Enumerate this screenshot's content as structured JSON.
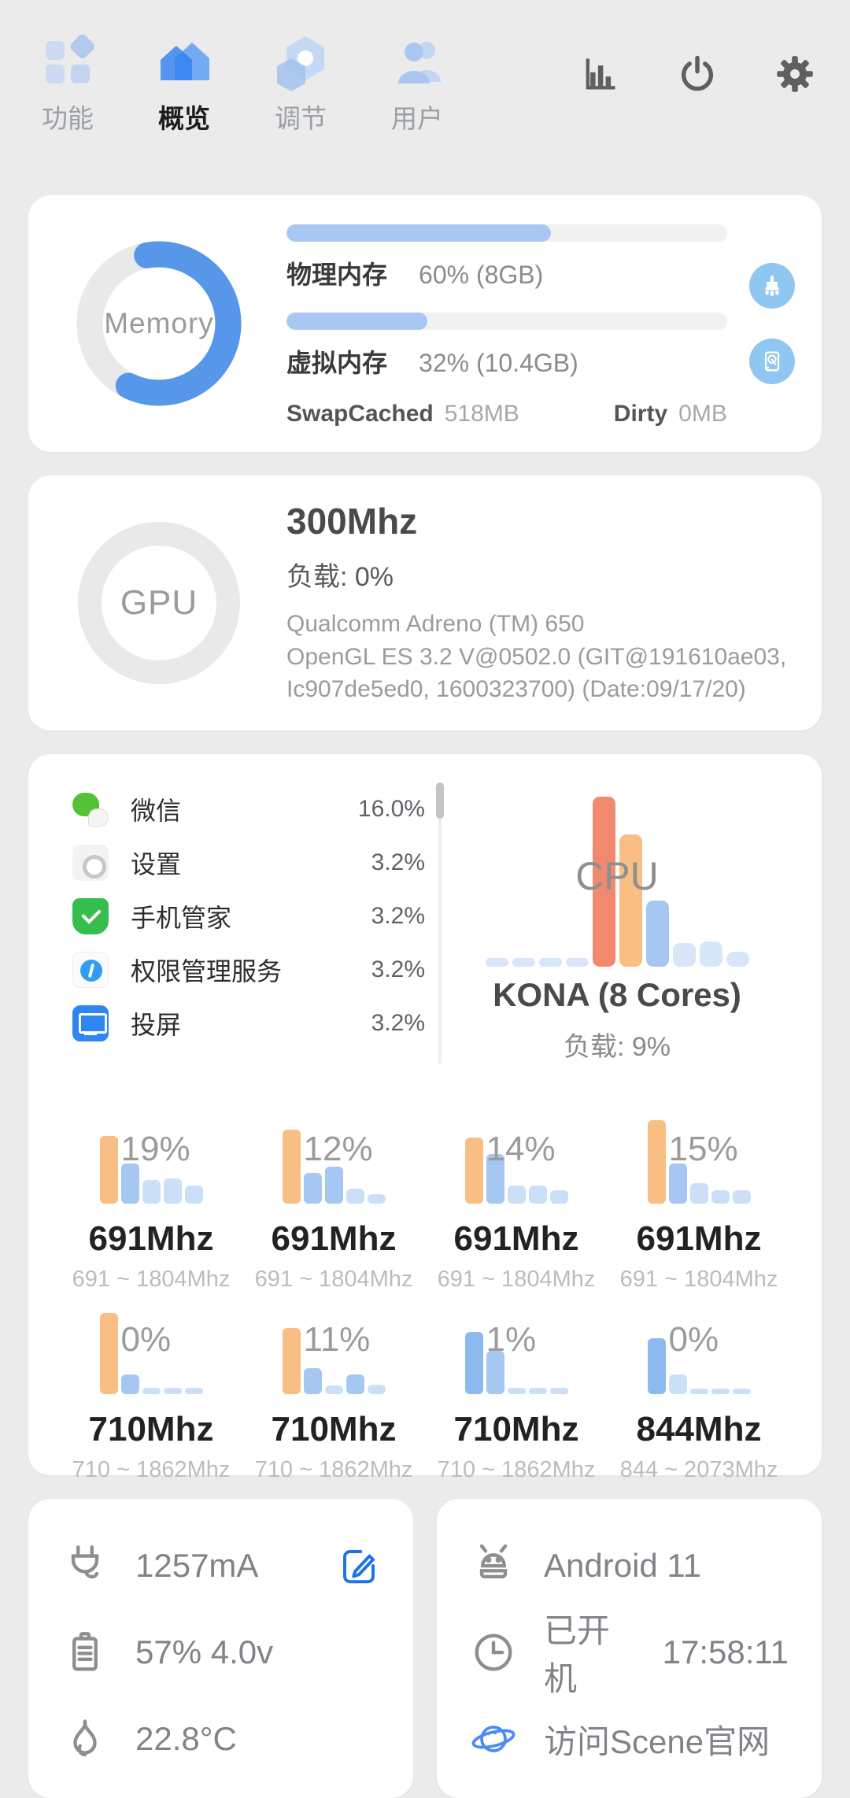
{
  "colors": {
    "salmon": "#F1896F",
    "orange": "#F8BE83",
    "blue": "#A5C7F2",
    "blue_strong": "#8CBAEE",
    "pale_blue": "#D7E6F9",
    "core_pale": "#CBDFF8"
  },
  "nav": {
    "tabs": [
      {
        "label": "功能",
        "active": false
      },
      {
        "label": "概览",
        "active": true
      },
      {
        "label": "调节",
        "active": false
      },
      {
        "label": "用户",
        "active": false
      }
    ]
  },
  "memory": {
    "title": "Memory",
    "ring_percent": 60,
    "rows": [
      {
        "label": "物理内存",
        "value": "60% (8GB)",
        "percent": 60
      },
      {
        "label": "虚拟内存",
        "value": "32% (10.4GB)",
        "percent": 32
      }
    ],
    "stats": [
      {
        "label": "SwapCached",
        "value": "518MB"
      },
      {
        "label": "Dirty",
        "value": "0MB"
      }
    ]
  },
  "gpu": {
    "title": "GPU",
    "freq": "300Mhz",
    "load": "负载: 0%",
    "info_lines": [
      "Qualcomm Adreno (TM) 650",
      "OpenGL ES 3.2 V@0502.0 (GIT@191610ae03,",
      "Ic907de5ed0, 1600323700) (Date:09/17/20)"
    ]
  },
  "cpu": {
    "overlay": "CPU",
    "chip": "KONA (8 Cores)",
    "load": "负载: 9%",
    "apps": [
      {
        "name": "微信",
        "value": "16.0%",
        "icon": "wechat"
      },
      {
        "name": "设置",
        "value": "3.2%",
        "icon": "settings"
      },
      {
        "name": "手机管家",
        "value": "3.2%",
        "icon": "manager"
      },
      {
        "name": "权限管理服务",
        "value": "3.2%",
        "icon": "permission"
      },
      {
        "name": "投屏",
        "value": "3.2%",
        "icon": "cast"
      }
    ],
    "chart_bars": [
      {
        "h": 0.05,
        "c": "pale_blue"
      },
      {
        "h": 0.05,
        "c": "pale_blue"
      },
      {
        "h": 0.05,
        "c": "pale_blue"
      },
      {
        "h": 0.05,
        "c": "pale_blue"
      },
      {
        "h": 1.0,
        "c": "salmon"
      },
      {
        "h": 0.78,
        "c": "orange"
      },
      {
        "h": 0.39,
        "c": "blue"
      },
      {
        "h": 0.14,
        "c": "pale_blue"
      },
      {
        "h": 0.15,
        "c": "pale_blue"
      },
      {
        "h": 0.09,
        "c": "pale_blue"
      }
    ],
    "cores": [
      {
        "percent": "19%",
        "freq": "691Mhz",
        "range": "691 ~ 1804Mhz",
        "bars": [
          {
            "h": 0.81,
            "c": "orange"
          },
          {
            "h": 0.48,
            "c": "blue"
          },
          {
            "h": 0.28,
            "c": "core_pale"
          },
          {
            "h": 0.3,
            "c": "core_pale"
          },
          {
            "h": 0.22,
            "c": "core_pale"
          }
        ]
      },
      {
        "percent": "12%",
        "freq": "691Mhz",
        "range": "691 ~ 1804Mhz",
        "bars": [
          {
            "h": 0.89,
            "c": "orange"
          },
          {
            "h": 0.37,
            "c": "blue"
          },
          {
            "h": 0.44,
            "c": "blue"
          },
          {
            "h": 0.18,
            "c": "core_pale"
          },
          {
            "h": 0.11,
            "c": "core_pale"
          }
        ]
      },
      {
        "percent": "14%",
        "freq": "691Mhz",
        "range": "691 ~ 1804Mhz",
        "bars": [
          {
            "h": 0.79,
            "c": "orange"
          },
          {
            "h": 0.59,
            "c": "blue"
          },
          {
            "h": 0.22,
            "c": "core_pale"
          },
          {
            "h": 0.22,
            "c": "core_pale"
          },
          {
            "h": 0.16,
            "c": "core_pale"
          }
        ]
      },
      {
        "percent": "15%",
        "freq": "691Mhz",
        "range": "691 ~ 1804Mhz",
        "bars": [
          {
            "h": 1.0,
            "c": "orange"
          },
          {
            "h": 0.48,
            "c": "blue"
          },
          {
            "h": 0.25,
            "c": "core_pale"
          },
          {
            "h": 0.16,
            "c": "core_pale"
          },
          {
            "h": 0.16,
            "c": "core_pale"
          }
        ]
      },
      {
        "percent": "0%",
        "freq": "710Mhz",
        "range": "710 ~ 1862Mhz",
        "bars": [
          {
            "h": 0.97,
            "c": "orange"
          },
          {
            "h": 0.24,
            "c": "blue"
          },
          {
            "h": 0.08,
            "c": "core_pale"
          },
          {
            "h": 0.08,
            "c": "core_pale"
          },
          {
            "h": 0.08,
            "c": "core_pale"
          }
        ]
      },
      {
        "percent": "11%",
        "freq": "710Mhz",
        "range": "710 ~ 1862Mhz",
        "bars": [
          {
            "h": 0.79,
            "c": "orange"
          },
          {
            "h": 0.31,
            "c": "blue"
          },
          {
            "h": 0.1,
            "c": "core_pale"
          },
          {
            "h": 0.24,
            "c": "blue"
          },
          {
            "h": 0.11,
            "c": "core_pale"
          }
        ]
      },
      {
        "percent": "1%",
        "freq": "710Mhz",
        "range": "710 ~ 1862Mhz",
        "bars": [
          {
            "h": 0.75,
            "c": "blue_strong"
          },
          {
            "h": 0.52,
            "c": "blue"
          },
          {
            "h": 0.08,
            "c": "core_pale"
          },
          {
            "h": 0.08,
            "c": "core_pale"
          },
          {
            "h": 0.08,
            "c": "core_pale"
          }
        ]
      },
      {
        "percent": "0%",
        "freq": "844Mhz",
        "range": "844 ~ 2073Mhz",
        "bars": [
          {
            "h": 0.67,
            "c": "blue_strong"
          },
          {
            "h": 0.24,
            "c": "core_pale"
          },
          {
            "h": 0.07,
            "c": "core_pale"
          },
          {
            "h": 0.03,
            "c": "core_pale"
          },
          {
            "h": 0.07,
            "c": "core_pale"
          }
        ]
      }
    ]
  },
  "battery": {
    "current": "1257mA",
    "level": "57%  4.0v",
    "temperature": "22.8°C"
  },
  "system": {
    "os": "Android 11",
    "uptime_label": "已开机",
    "uptime": "17:58:11",
    "website": "访问Scene官网"
  }
}
